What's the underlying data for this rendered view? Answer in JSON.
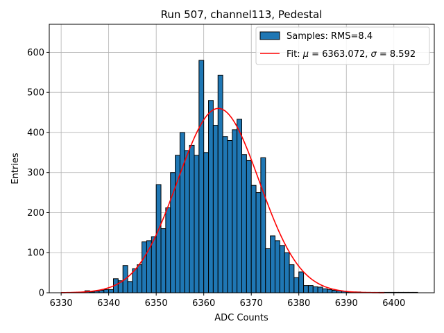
{
  "chart_data": {
    "type": "bar",
    "title": "Run 507, channel113, Pedestal",
    "xlabel": "ADC Counts",
    "ylabel": "Entries",
    "xlim": [
      6327.5,
      6408.5
    ],
    "ylim": [
      0,
      670
    ],
    "xticks": [
      6330,
      6340,
      6350,
      6360,
      6370,
      6380,
      6390,
      6400
    ],
    "yticks": [
      0,
      100,
      200,
      300,
      400,
      500,
      600
    ],
    "grid": true,
    "legend_position": "top-right",
    "colors": {
      "bars": "#1f77b4",
      "bar_edge": "#000000",
      "fit": "#ff0000",
      "grid": "#b0b0b0"
    },
    "series": [
      {
        "name": "Samples: RMS=8.4",
        "kind": "histogram",
        "bin_width": 1,
        "bin_edges_start": 6335,
        "values": [
          5,
          2,
          4,
          6,
          8,
          8,
          35,
          30,
          68,
          28,
          60,
          70,
          127,
          130,
          140,
          270,
          160,
          212,
          300,
          343,
          400,
          355,
          368,
          343,
          580,
          350,
          480,
          418,
          543,
          390,
          380,
          407,
          433,
          345,
          330,
          268,
          250,
          337,
          110,
          142,
          130,
          118,
          100,
          70,
          38,
          52,
          18,
          18,
          15,
          14,
          10,
          8,
          6,
          5,
          4,
          2,
          2,
          2,
          1,
          1,
          1,
          1,
          1,
          1,
          1,
          1,
          1,
          1,
          1,
          1
        ]
      },
      {
        "name": "Fit: μ = 6363.072, σ = 8.592",
        "name_parts": {
          "prefix": "Fit: ",
          "mu_symbol": "μ",
          "mu_text": " = 6363.072, ",
          "sigma_symbol": "σ",
          "sigma_text": " = 8.592"
        },
        "kind": "line",
        "function": "gaussian",
        "mu": 6363.072,
        "sigma": 8.592,
        "amplitude": 460,
        "x_range": [
          6330,
          6398
        ]
      }
    ]
  }
}
